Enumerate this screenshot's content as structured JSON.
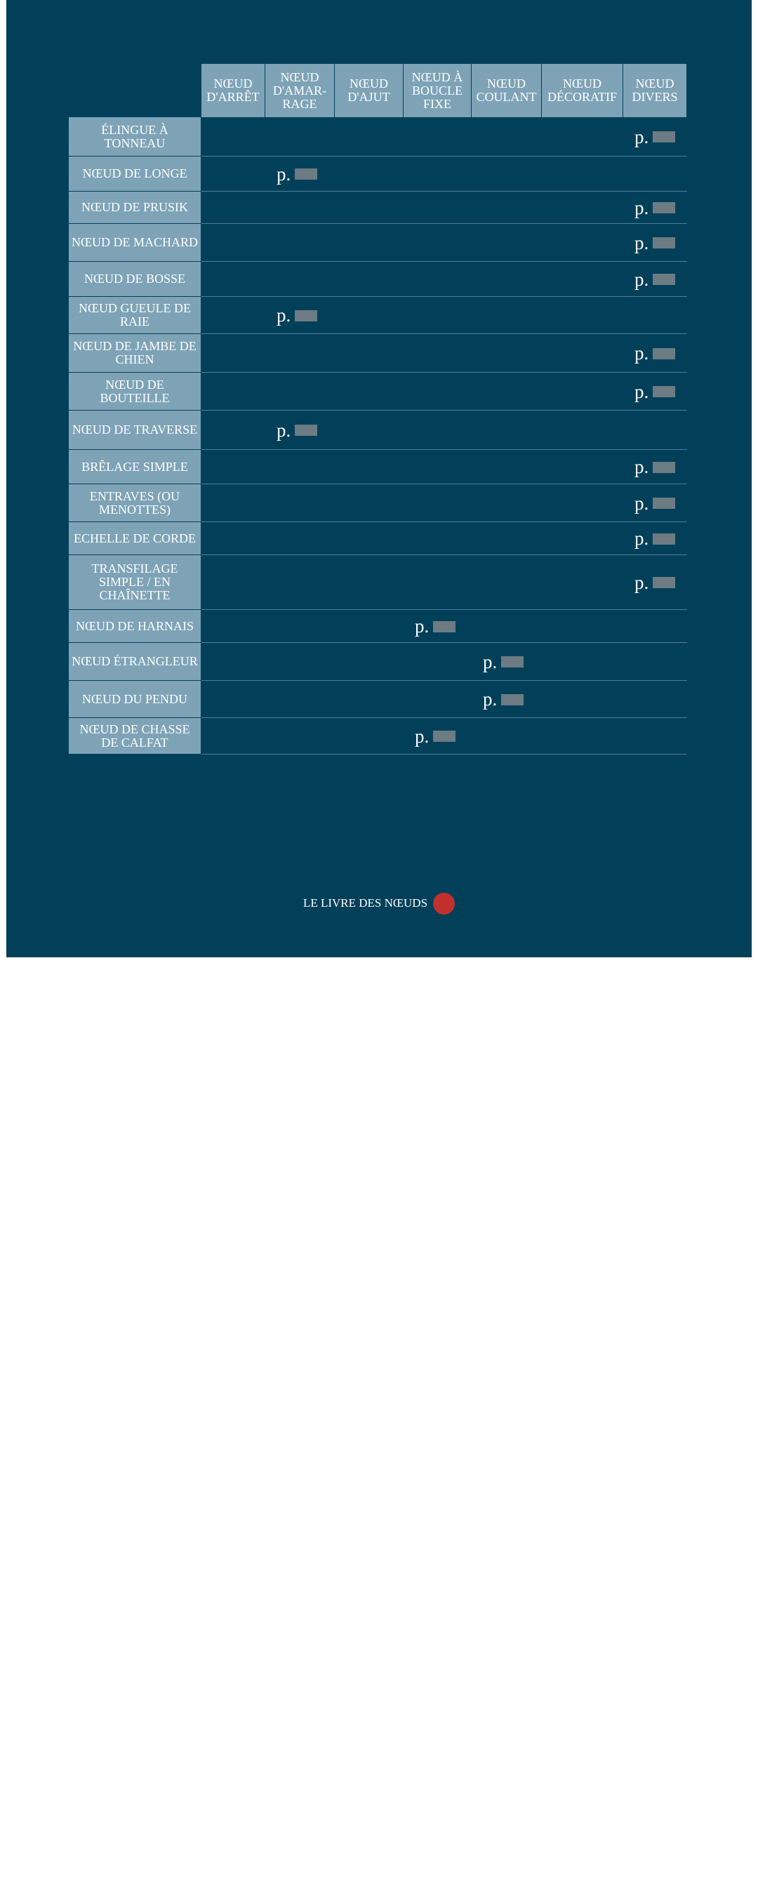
{
  "table": {
    "columns": [
      "NŒUD D'ARRÊT",
      "NŒUD D'AMAR-RAGE",
      "NŒUD D'AJUT",
      "NŒUD À BOUCLE FIXE",
      "NŒUD COULANT",
      "NŒUD DÉCORATIF",
      "NŒUD DIVERS"
    ],
    "rows": [
      {
        "label": "ÉLINGUE À TONNEAU",
        "cells": [
          null,
          null,
          null,
          null,
          null,
          null,
          "p."
        ]
      },
      {
        "label": "NŒUD DE LONGE",
        "cells": [
          null,
          "p.",
          null,
          null,
          null,
          null,
          null
        ]
      },
      {
        "label": "NŒUD DE PRUSIK",
        "cells": [
          null,
          null,
          null,
          null,
          null,
          null,
          "p."
        ]
      },
      {
        "label": "NŒUD DE MACHARD",
        "cells": [
          null,
          null,
          null,
          null,
          null,
          null,
          "p."
        ]
      },
      {
        "label": "NŒUD DE BOSSE",
        "cells": [
          null,
          null,
          null,
          null,
          null,
          null,
          "p."
        ]
      },
      {
        "label": "NŒUD GUEULE DE RAIE",
        "cells": [
          null,
          "p.",
          null,
          null,
          null,
          null,
          null
        ]
      },
      {
        "label": "NŒUD DE JAMBE DE CHIEN",
        "cells": [
          null,
          null,
          null,
          null,
          null,
          null,
          "p."
        ]
      },
      {
        "label": "NŒUD DE BOUTEILLE",
        "cells": [
          null,
          null,
          null,
          null,
          null,
          null,
          "p."
        ]
      },
      {
        "label": "NŒUD DE TRAVERSE",
        "cells": [
          null,
          "p.",
          null,
          null,
          null,
          null,
          null
        ]
      },
      {
        "label": "BRÊLAGE SIMPLE",
        "cells": [
          null,
          null,
          null,
          null,
          null,
          null,
          "p."
        ]
      },
      {
        "label": "ENTRAVES (OU MENOTTES)",
        "cells": [
          null,
          null,
          null,
          null,
          null,
          null,
          "p."
        ]
      },
      {
        "label": "ECHELLE DE CORDE",
        "cells": [
          null,
          null,
          null,
          null,
          null,
          null,
          "p."
        ]
      },
      {
        "label": "TRANSFILAGE SIMPLE / EN CHAÎNETTE",
        "cells": [
          null,
          null,
          null,
          null,
          null,
          null,
          "p."
        ]
      },
      {
        "label": "NŒUD DE HARNAIS",
        "cells": [
          null,
          null,
          null,
          "p.",
          null,
          null,
          null
        ]
      },
      {
        "label": "NŒUD ÉTRANGLEUR",
        "cells": [
          null,
          null,
          null,
          null,
          "p.",
          null,
          null
        ]
      },
      {
        "label": "NŒUD DU PENDU",
        "cells": [
          null,
          null,
          null,
          null,
          "p.",
          null,
          null
        ]
      },
      {
        "label": "NŒUD DE CHASSE DE CALFAT",
        "cells": [
          null,
          null,
          null,
          "p.",
          null,
          null,
          null
        ]
      }
    ]
  },
  "footer": {
    "title": "LE LIVRE DES NŒUDS"
  }
}
